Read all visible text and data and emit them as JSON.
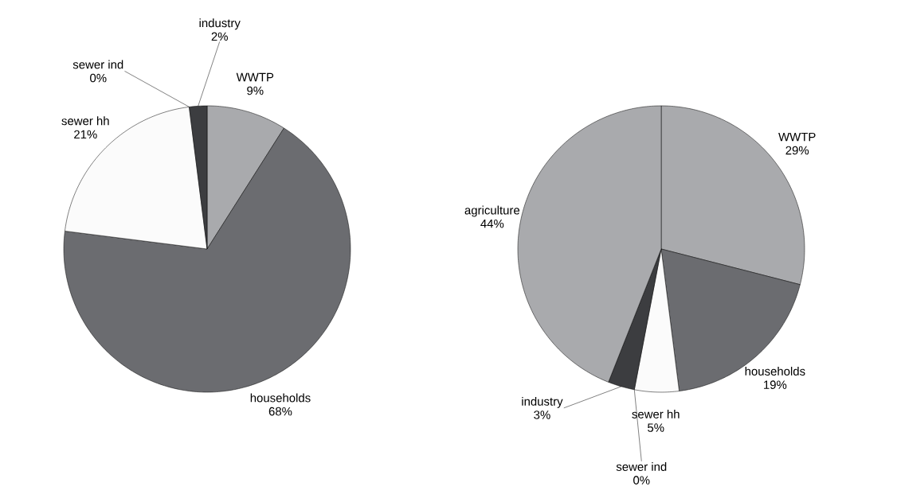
{
  "chart_data": [
    {
      "type": "pie",
      "categories": [
        "WWTP",
        "households",
        "sewer hh",
        "sewer ind",
        "industry"
      ],
      "values": [
        9,
        68,
        21,
        0,
        2
      ],
      "value_labels": [
        "9%",
        "68%",
        "21%",
        "0%",
        "2%"
      ],
      "colors": [
        "#a9aaad",
        "#6b6c70",
        "#fbfbfb",
        "#2a2a2a",
        "#3c3d40"
      ]
    },
    {
      "type": "pie",
      "categories": [
        "WWTP",
        "households",
        "sewer hh",
        "sewer ind",
        "industry",
        "agriculture"
      ],
      "values": [
        29,
        19,
        5,
        0,
        3,
        44
      ],
      "value_labels": [
        "29%",
        "19%",
        "5%",
        "0%",
        "3%",
        "44%"
      ],
      "colors": [
        "#a9aaad",
        "#6b6c70",
        "#fbfbfb",
        "#2a2a2a",
        "#3c3d40",
        "#a9aaad"
      ]
    }
  ]
}
